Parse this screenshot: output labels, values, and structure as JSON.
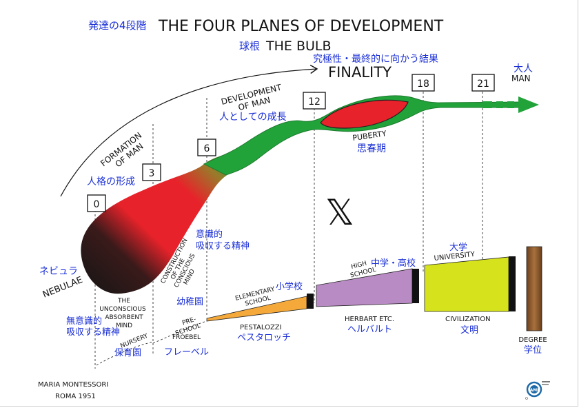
{
  "title": {
    "jp_prefix": "発達の4段階",
    "main": "THE FOUR PLANES OF DEVELOPMENT",
    "sub_jp": "球根",
    "sub": "THE BULB"
  },
  "finality": {
    "jp": "究極性・最終的に向かう結果",
    "en": "FINALITY"
  },
  "man": {
    "jp": "大人",
    "en": "MAN"
  },
  "ages": [
    "0",
    "3",
    "6",
    "12",
    "18",
    "21"
  ],
  "formation": {
    "line1": "FORMATION",
    "line2": "OF MAN",
    "jp": "人格の形成"
  },
  "development": {
    "line1": "DEVELOPMENT",
    "line2": "OF MAN",
    "jp": "人としての成長"
  },
  "puberty": {
    "en": "PUBERTY",
    "jp": "思春期"
  },
  "nebulae": {
    "en": "NEBULAE",
    "jp": "ネビュラ"
  },
  "construction": {
    "line1": "CONSTRUCTION",
    "line2": "OF THE",
    "line3": "CONSCIOUS",
    "line4": "MIND",
    "jp_line1": "意識的",
    "jp_line2": "吸収する精神"
  },
  "unconscious": {
    "line1": "THE",
    "line2": "UNCONSCIOUS",
    "line3": "ABSORBENT",
    "line4": "MIND",
    "jp_line1": "無意識的",
    "jp_line2": "吸収する精神"
  },
  "nursery": {
    "en": "NURSERY",
    "jp": "保育園"
  },
  "preschool": {
    "line1": "PRE-",
    "line2": "SCHOOL",
    "jp": "幼稚園"
  },
  "froebel": {
    "en": "FROEBEL",
    "jp": "フレーベル"
  },
  "elementary": {
    "line1": "ELEMENTARY",
    "line2": "SCHOOL",
    "jp": "小学校"
  },
  "pestalozzi": {
    "en": "PESTALOZZI",
    "jp": "ペスタロッチ"
  },
  "high_school": {
    "line1": "HIGH",
    "line2": "SCHOOL",
    "jp": "中学・高校"
  },
  "herbart": {
    "en": "HERBART ETC.",
    "jp": "ヘルバルト"
  },
  "university": {
    "en": "UNIVERSITY",
    "jp": "大学"
  },
  "civilization": {
    "en": "CIVILIZATION",
    "jp": "文明"
  },
  "degree": {
    "en": "DEGREE",
    "jp": "学位"
  },
  "x_mark": "𝕏",
  "credit": {
    "line1": "MARIA MONTESSORI",
    "line2": "ROMA 1951"
  },
  "logo": {
    "text": "AMI"
  },
  "colors": {
    "bulb_red": "#e8222a",
    "bulb_black": "#1a1a1a",
    "stem_green": "#22a33a",
    "elementary": "#f5a93a",
    "high_school": "#b98bc4",
    "university": "#d6e21c",
    "degree": "#8a5a2b",
    "japanese": "#1a2fd6"
  }
}
